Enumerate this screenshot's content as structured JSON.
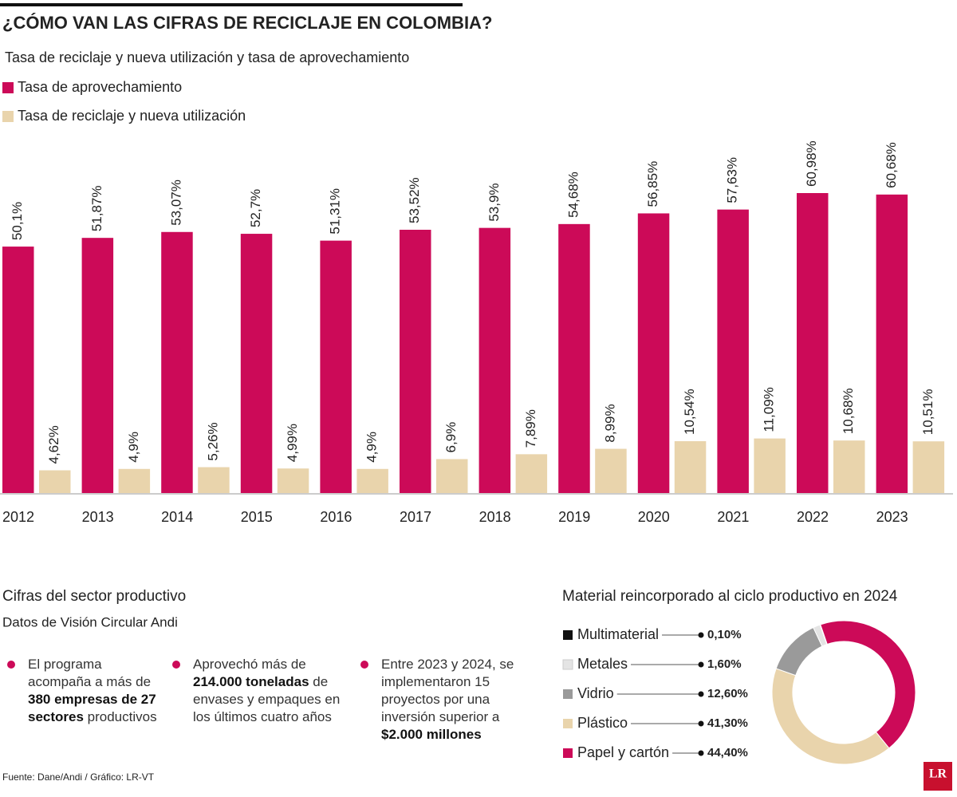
{
  "header": {
    "title": "¿CÓMO VAN LAS CIFRAS DE RECICLAJE EN COLOMBIA?",
    "subtitle": "Tasa de reciclaje y nueva utilización  y tasa de aprovechamiento"
  },
  "chart_data": [
    {
      "type": "bar",
      "categories": [
        "2012",
        "2013",
        "2014",
        "2015",
        "2016",
        "2017",
        "2018",
        "2019",
        "2020",
        "2021",
        "2022",
        "2023"
      ],
      "series": [
        {
          "name": "Tasa de aprovechamiento",
          "color": "#cc0a58",
          "values": [
            50.1,
            51.87,
            53.07,
            52.7,
            51.31,
            53.52,
            53.9,
            54.68,
            56.85,
            57.63,
            60.98,
            60.68
          ],
          "value_labels": [
            "50,1%",
            "51,87%",
            "53,07%",
            "52,7%",
            "51,31%",
            "53,52%",
            "53,9%",
            "54,68%",
            "56,85%",
            "57,63%",
            "60,98%",
            "60,68%"
          ]
        },
        {
          "name": "Tasa de reciclaje y nueva utilización",
          "color": "#e9d4ac",
          "values": [
            4.62,
            4.9,
            5.26,
            4.99,
            4.9,
            6.9,
            7.89,
            8.99,
            10.54,
            11.09,
            10.68,
            10.51
          ],
          "value_labels": [
            "4,62%",
            "4,9%",
            "5,26%",
            "4,99%",
            "4,9%",
            "6,9%",
            "7,89%",
            "8,99%",
            "10,54%",
            "11,09%",
            "10,68%",
            "10,51%"
          ]
        }
      ]
    },
    {
      "type": "pie",
      "title": "Material reincorporado al ciclo productivo en 2024",
      "categories": [
        "Multimaterial",
        "Metales",
        "Vidrio",
        "Plástico",
        "Papel y cartón"
      ],
      "values": [
        0.1,
        1.6,
        12.6,
        41.3,
        44.4
      ],
      "value_labels": [
        "0,10%",
        "1,60%",
        "12,60%",
        "41,30%",
        "44,40%"
      ],
      "colors": [
        "#111111",
        "#e4e4e4",
        "#9a9a9a",
        "#e9d4ac",
        "#cc0a58"
      ]
    }
  ],
  "sector": {
    "title": "Cifras del sector productivo",
    "subtitle": "Datos de Visión Circular Andi",
    "bullets": [
      [
        "El programa acompaña a más de ",
        "380 empresas de 27 sectores",
        " productivos"
      ],
      [
        "Aprovechó más de ",
        "214.000 toneladas",
        " de envases y empaques en los últimos cuatro años"
      ],
      [
        "Entre 2023 y 2024, se implementaron 15 proyectos por una inversión superior a ",
        "$2.000 millones"
      ]
    ]
  },
  "source": "Fuente: Dane/Andi  / Gráfico: LR-VT",
  "logo": "LR"
}
